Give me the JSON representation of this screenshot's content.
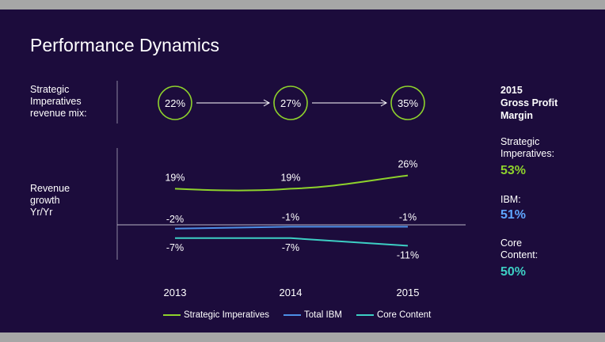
{
  "title": "Performance Dynamics",
  "mix_label": "Strategic\nImperatives\nrevenue mix:",
  "growth_label": "Revenue\ngrowth\nYr/Yr",
  "gross_profit": {
    "title": "2015\nGross Profit\nMargin",
    "items": [
      {
        "name": "Strategic\nImperatives:",
        "value": "53%",
        "color": "#8ed22c"
      },
      {
        "name": "IBM:",
        "value": "51%",
        "color": "#5fa6ff"
      },
      {
        "name": "Core\nContent:",
        "value": "50%",
        "color": "#3dcfc4"
      }
    ]
  },
  "chart_data": {
    "type": "line",
    "categories": [
      "2013",
      "2014",
      "2015"
    ],
    "revenue_mix": {
      "values": [
        22,
        27,
        35
      ],
      "labels": [
        "22%",
        "27%",
        "35%"
      ]
    },
    "series": [
      {
        "name": "Strategic Imperatives",
        "color": "#8ed22c",
        "values": [
          19,
          19,
          26
        ],
        "labels": [
          "19%",
          "19%",
          "26%"
        ]
      },
      {
        "name": "Total IBM",
        "color": "#4d8fe6",
        "values": [
          -2,
          -1,
          -1
        ],
        "labels": [
          "-2%",
          "-1%",
          "-1%"
        ]
      },
      {
        "name": "Core Content",
        "color": "#3dcfc4",
        "values": [
          -7,
          -7,
          -11
        ],
        "labels": [
          "-7%",
          "-7%",
          "-11%"
        ]
      }
    ]
  }
}
